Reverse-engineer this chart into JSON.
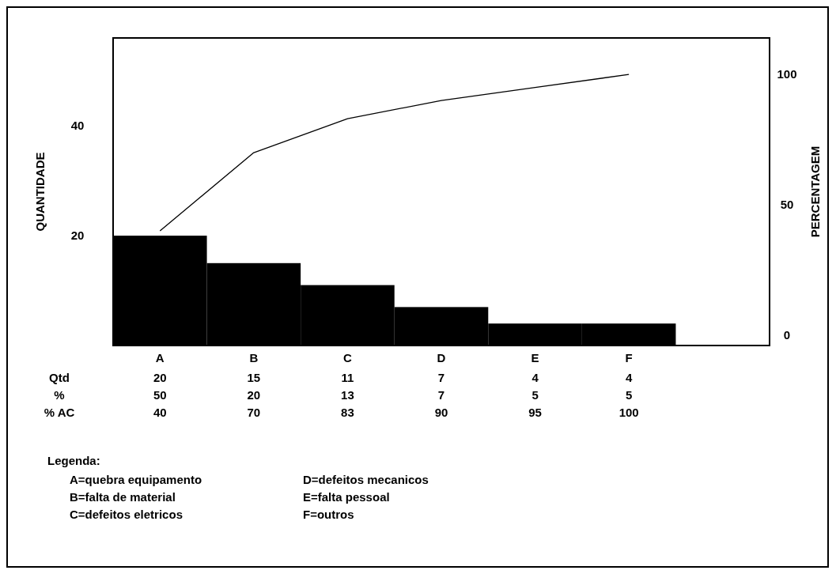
{
  "chart_data": {
    "type": "bar",
    "ylabel": "QUANTIDADE",
    "y2label": "PERCENTAGEM",
    "categories": [
      "A",
      "B",
      "C",
      "D",
      "E",
      "F",
      null
    ],
    "series": [
      {
        "color": "#000000",
        "values": [
          20,
          15,
          11,
          7,
          4,
          4,
          null
        ],
        "value_labels": [
          "20",
          "15",
          "11",
          "7",
          "4",
          "4",
          null
        ]
      },
      {
        "type": "line",
        "axis": "y2",
        "color": "#000000",
        "values": [
          40,
          70,
          83,
          90,
          95,
          100,
          null
        ],
        "value_labels": [
          "40",
          "70",
          "83",
          "90",
          "95",
          "100",
          null
        ]
      }
    ],
    "ylim": [
      0,
      56
    ],
    "yticks": [
      20,
      40
    ],
    "y2lim": [
      -4,
      114
    ],
    "y2ticks": [
      0,
      50,
      100
    ],
    "marker": "none",
    "annotations": [
      "Qtd",
      "%",
      "% AC",
      "50",
      "20",
      "13",
      "7",
      "5",
      "5",
      "Legenda:",
      "A=quebra equipamento",
      "B=falta de material",
      "C=defeitos eletricos",
      "D=defeitos mecanicos",
      "E=falta pessoal",
      "F=outros"
    ]
  }
}
